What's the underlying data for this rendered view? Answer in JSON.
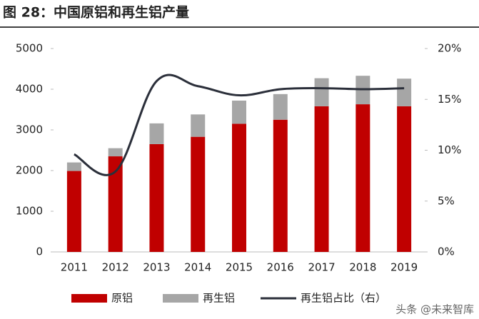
{
  "chart_data": {
    "type": "bar-line",
    "title": "图 28：中国原铝和再生铝产量",
    "categories": [
      "2011",
      "2012",
      "2013",
      "2014",
      "2015",
      "2016",
      "2017",
      "2018",
      "2019"
    ],
    "series": [
      {
        "name": "原铝",
        "type": "bar",
        "color": "#c00000",
        "values": [
          1990,
          2350,
          2650,
          2830,
          3150,
          3250,
          3580,
          3630,
          3580
        ]
      },
      {
        "name": "再生铝",
        "type": "bar",
        "color": "#a6a6a6",
        "values": [
          210,
          200,
          510,
          550,
          570,
          630,
          690,
          700,
          680
        ]
      },
      {
        "name": "再生铝占比（右）",
        "type": "line",
        "axis": "y2",
        "color": "#2b2f3a",
        "values": [
          9.6,
          7.9,
          16.8,
          16.3,
          15.4,
          16.0,
          16.1,
          16.0,
          16.1
        ]
      }
    ],
    "ylim": [
      0,
      5000
    ],
    "yticks": [
      0,
      1000,
      2000,
      3000,
      4000,
      5000
    ],
    "y2lim": [
      0,
      20
    ],
    "y2ticks": [
      {
        "value": 0,
        "label": "0%"
      },
      {
        "value": 5,
        "label": "5%"
      },
      {
        "value": 10,
        "label": "10%"
      },
      {
        "value": 15,
        "label": "15%"
      },
      {
        "value": 20,
        "label": "20%"
      }
    ],
    "watermark": "头条 @未来智库"
  }
}
